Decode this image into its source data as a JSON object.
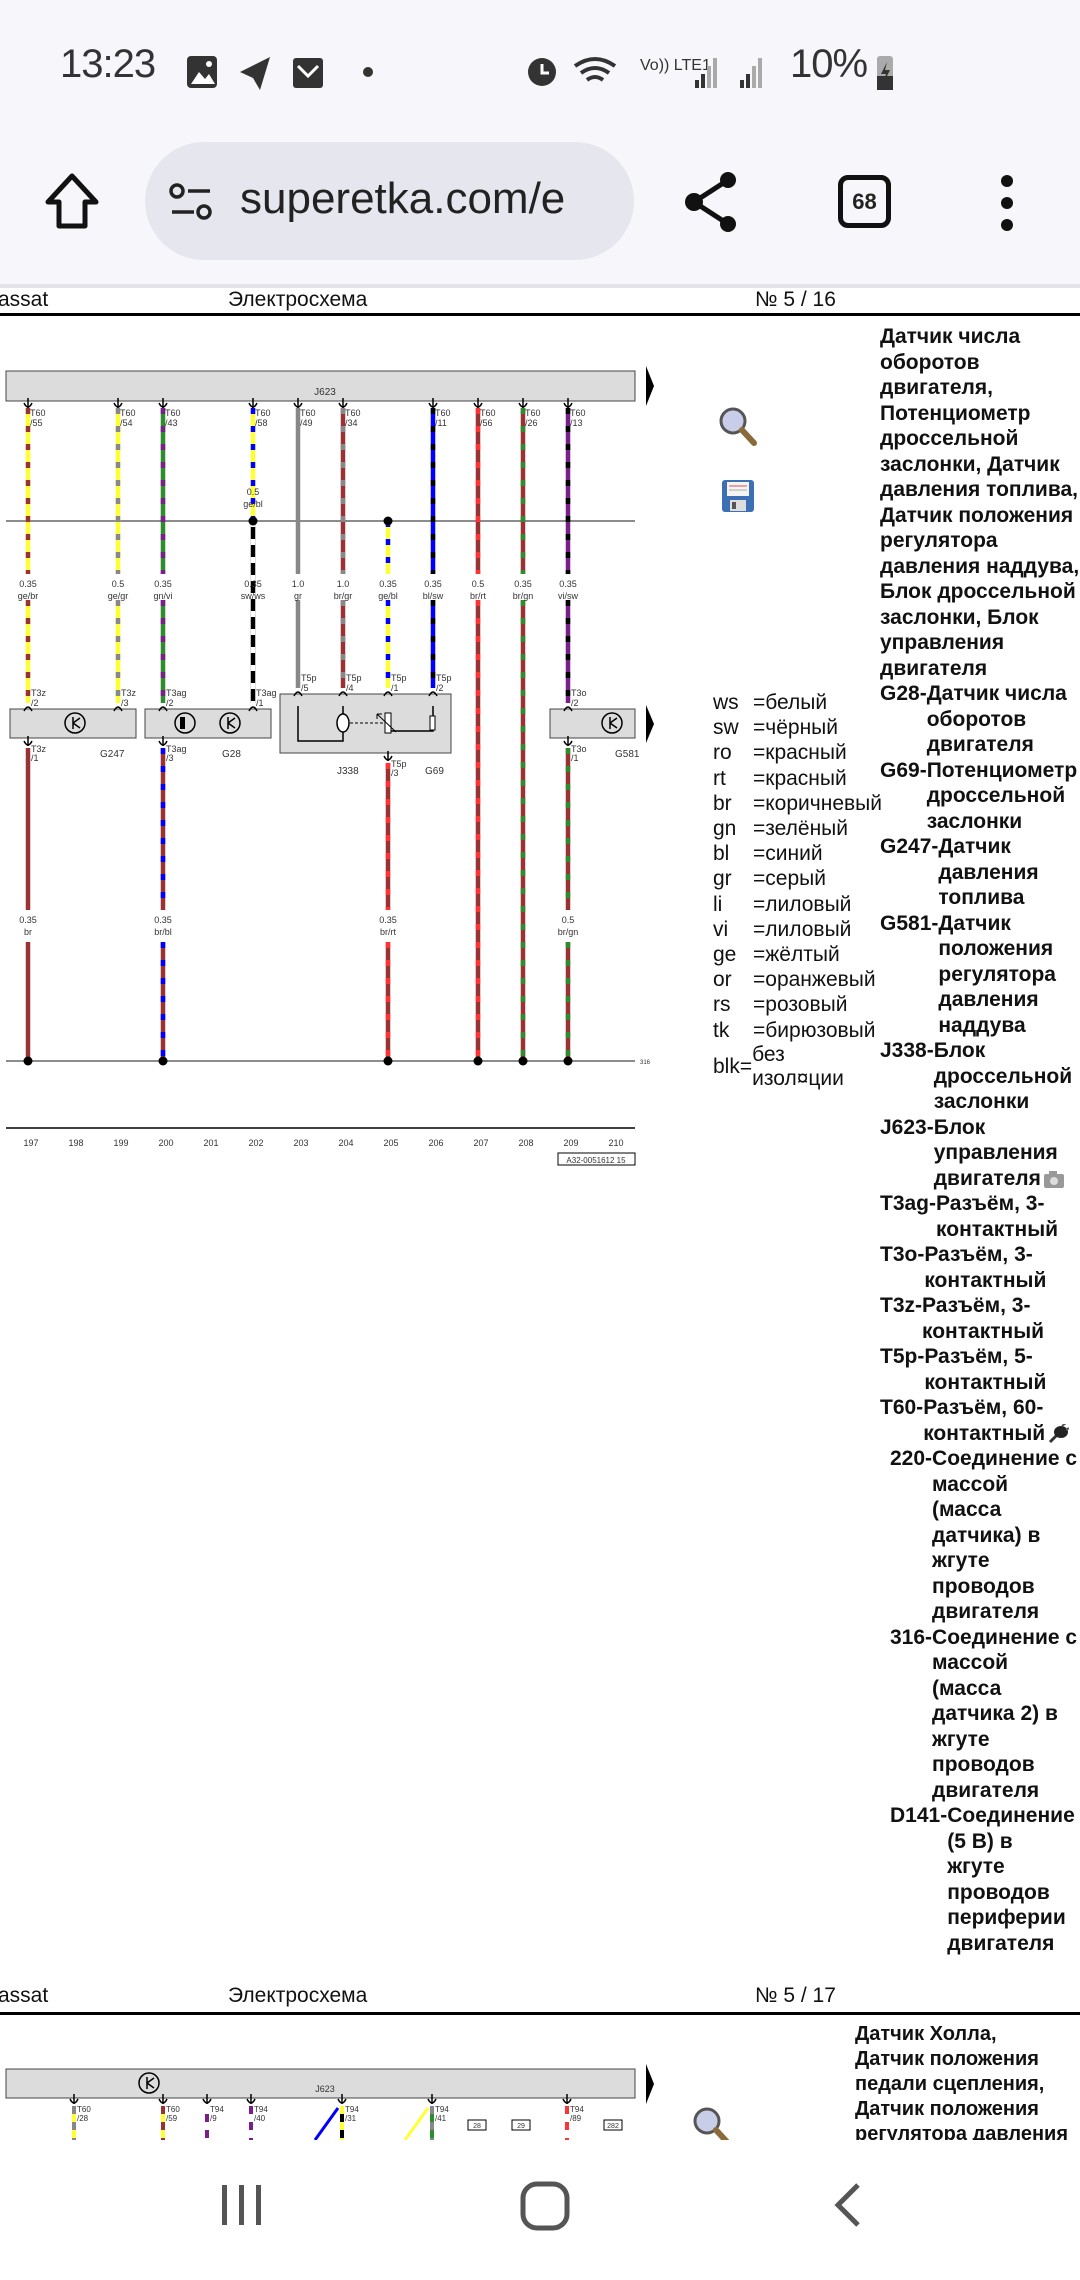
{
  "status_bar": {
    "time": "13:23",
    "battery": "10%",
    "network": "Vo)) LTE1"
  },
  "browser": {
    "url": "superetka.com/e",
    "tab_count": "68"
  },
  "page1": {
    "header": {
      "model": "assat",
      "title": "Электросхема",
      "page": "№  5 / 16"
    },
    "title_lines": [
      "Датчик числа",
      "оборотов",
      "двигателя,",
      "Потенциометр",
      "дроссельной",
      "заслонки, Датчик",
      "давления топлива,",
      "Датчик положения",
      "регулятора",
      "давления наддува,",
      "Блок дроссельной",
      "заслонки, Блок",
      "управления",
      "двигателя"
    ],
    "entries": [
      {
        "key": "G28-",
        "lines": [
          "Датчик числа",
          "оборотов",
          "двигателя"
        ]
      },
      {
        "key": "G69-",
        "lines": [
          "Потенциометр",
          "дроссельной",
          "заслонки"
        ]
      },
      {
        "key": "G247-",
        "lines": [
          "Датчик",
          "давления",
          "топлива"
        ]
      },
      {
        "key": "G581-",
        "lines": [
          "Датчик",
          "положения",
          "регулятора",
          "давления",
          "наддува"
        ]
      },
      {
        "key": "J338-",
        "lines": [
          "Блок",
          "дроссельной",
          "заслонки"
        ]
      },
      {
        "key": "J623-",
        "lines": [
          "Блок",
          "управления",
          "двигателя"
        ],
        "icon": "camera"
      },
      {
        "key": "T3ag-",
        "lines": [
          "Разъём, 3-",
          "контактный"
        ]
      },
      {
        "key": "T3o-",
        "lines": [
          "Разъём, 3-",
          "контактный"
        ]
      },
      {
        "key": "T3z-",
        "lines": [
          "Разъём, 3-",
          "контактный"
        ]
      },
      {
        "key": "T5p-",
        "lines": [
          "Разъём, 5-",
          "контактный"
        ]
      },
      {
        "key": "T60-",
        "lines": [
          "Разъём, 60-",
          "контактный"
        ],
        "icon": "plug"
      },
      {
        "key": "220-",
        "lines": [
          "Соединение с",
          "массой",
          "(масса",
          "датчика) в",
          "жгуте",
          "проводов",
          "двигателя"
        ],
        "indent": true
      },
      {
        "key": "316-",
        "lines": [
          "Соединение с",
          "массой",
          "(масса",
          "датчика 2) в",
          "жгуте",
          "проводов",
          "двигателя"
        ],
        "indent": true
      },
      {
        "key": "D141-",
        "lines": [
          "Соединение",
          "(5 В) в",
          "жгуте",
          "проводов",
          "периферии",
          "двигателя"
        ],
        "indent": true
      }
    ],
    "legend": [
      {
        "code": "ws",
        "text": "=белый"
      },
      {
        "code": "sw",
        "text": "=чёрный"
      },
      {
        "code": "ro",
        "text": "=красный"
      },
      {
        "code": "rt",
        "text": "=красный"
      },
      {
        "code": "br",
        "text": "=коричневый"
      },
      {
        "code": "gn",
        "text": "=зелёный"
      },
      {
        "code": "bl",
        "text": "=синий"
      },
      {
        "code": "gr",
        "text": "=серый"
      },
      {
        "code": "li",
        "text": "=лиловый"
      },
      {
        "code": "vi",
        "text": "=лиловый"
      },
      {
        "code": "ge",
        "text": "=жёлтый"
      },
      {
        "code": "or",
        "text": "=оранжевый"
      },
      {
        "code": "rs",
        "text": "=розовый"
      },
      {
        "code": "tk",
        "text": "=бирюзовый"
      }
    ],
    "legend_blk": {
      "code": "blk=",
      "line1": "без",
      "line2": "изол¤ции"
    },
    "diagram": {
      "bar_label": "J623",
      "ground_label": "316",
      "stamp": "A32-0051612 15",
      "columns": [
        "197",
        "198",
        "199",
        "200",
        "201",
        "202",
        "203",
        "204",
        "205",
        "206",
        "207",
        "208",
        "209",
        "210"
      ],
      "components": [
        {
          "label": "G247",
          "col": "197"
        },
        {
          "label": "G28",
          "col": "201"
        },
        {
          "label": "J338",
          "col": "204"
        },
        {
          "label": "G69",
          "col": "206"
        },
        {
          "label": "G581",
          "col": "210"
        }
      ],
      "wires": [
        {
          "col": "197",
          "top_pin": [
            "T60",
            "/55"
          ],
          "size": "0.35",
          "color": "ge/br",
          "bot_pin": [
            "T3z",
            "/2"
          ],
          "low_pin": [
            "T3z",
            "/1"
          ],
          "low_size": "0.35",
          "low_color": "br"
        },
        {
          "col": "199",
          "top_pin": [
            "T60",
            "/54"
          ],
          "size": "0.5",
          "color": "ge/gr",
          "bot_pin": [
            "T3z",
            "/3"
          ]
        },
        {
          "col": "200",
          "top_pin": [
            "T60",
            "/43"
          ],
          "size": "0.35",
          "color": "gn/vi",
          "bot_pin": [
            "T3ag",
            "/2"
          ],
          "low_pin": [
            "T3ag",
            "/3"
          ],
          "low_size": "0.35",
          "low_color": "br/bl"
        },
        {
          "col": "202",
          "top_pin": [
            "T60",
            "/58"
          ],
          "up_size": "0.5",
          "up_color": "ge/bl",
          "size": "0.35",
          "color": "sw/ws",
          "bot_pin": [
            "T3ag",
            "/1"
          ]
        },
        {
          "col": "203",
          "top_pin": [
            "T60",
            "/49"
          ],
          "size": "1.0",
          "color": "gr",
          "bot_pin": [
            "T5p",
            "/5"
          ]
        },
        {
          "col": "204",
          "top_pin": [
            "T60",
            "/34"
          ],
          "size": "1.0",
          "color": "br/gr",
          "bot_pin": [
            "T5p",
            "/4"
          ]
        },
        {
          "col": "205",
          "from_junction": true,
          "size": "0.35",
          "color": "ge/bl",
          "bot_pin": [
            "T5p",
            "/1"
          ],
          "low_pin": [
            "T5p",
            "/3"
          ],
          "low_size": "0.35",
          "low_color": "br/rt"
        },
        {
          "col": "206",
          "top_pin": [
            "T60",
            "/11"
          ],
          "size": "0.35",
          "color": "bl/sw",
          "bot_pin": [
            "T5p",
            "/2"
          ]
        },
        {
          "col": "207",
          "top_pin": [
            "T60",
            "/56"
          ],
          "size": "0.5",
          "color": "br/rt",
          "to_ground": true
        },
        {
          "col": "208",
          "top_pin": [
            "T60",
            "/26"
          ],
          "size": "0.35",
          "color": "br/gn",
          "to_ground": true
        },
        {
          "col": "209",
          "top_pin": [
            "T60",
            "/13"
          ],
          "size": "0.35",
          "color": "vi/sw",
          "bot_pin": [
            "T3o",
            "/2"
          ],
          "low_pin": [
            "T3o",
            "/1"
          ],
          "low_size": "0.5",
          "low_color": "br/gn"
        }
      ]
    }
  },
  "page2": {
    "header": {
      "model": "assat",
      "title": "Электросхема",
      "page": "№  5 / 17"
    },
    "title_lines": [
      "Датчик Холла,",
      "Датчик положения",
      "педали сцепления,",
      "Датчик положения",
      "регулятора давления"
    ],
    "bar_label": "J623",
    "pins": [
      [
        "T60",
        "/28"
      ],
      [
        "T60",
        "/59"
      ],
      [
        "T94",
        "/9"
      ],
      [
        "T94",
        "/40"
      ],
      [
        "T94",
        "/31"
      ],
      [
        "T94",
        "/41"
      ],
      [
        "T94",
        "/89"
      ]
    ],
    "boxes": [
      "28",
      "29",
      "282"
    ]
  },
  "colors": {
    "ge": "#ffff33",
    "br": "#993333",
    "gr": "#888888",
    "gn": "#2e8b2e",
    "vi": "#7a1f8a",
    "bl": "#0000ff",
    "sw": "#000000",
    "ws": "#ffffff",
    "rt": "#ff3333"
  }
}
